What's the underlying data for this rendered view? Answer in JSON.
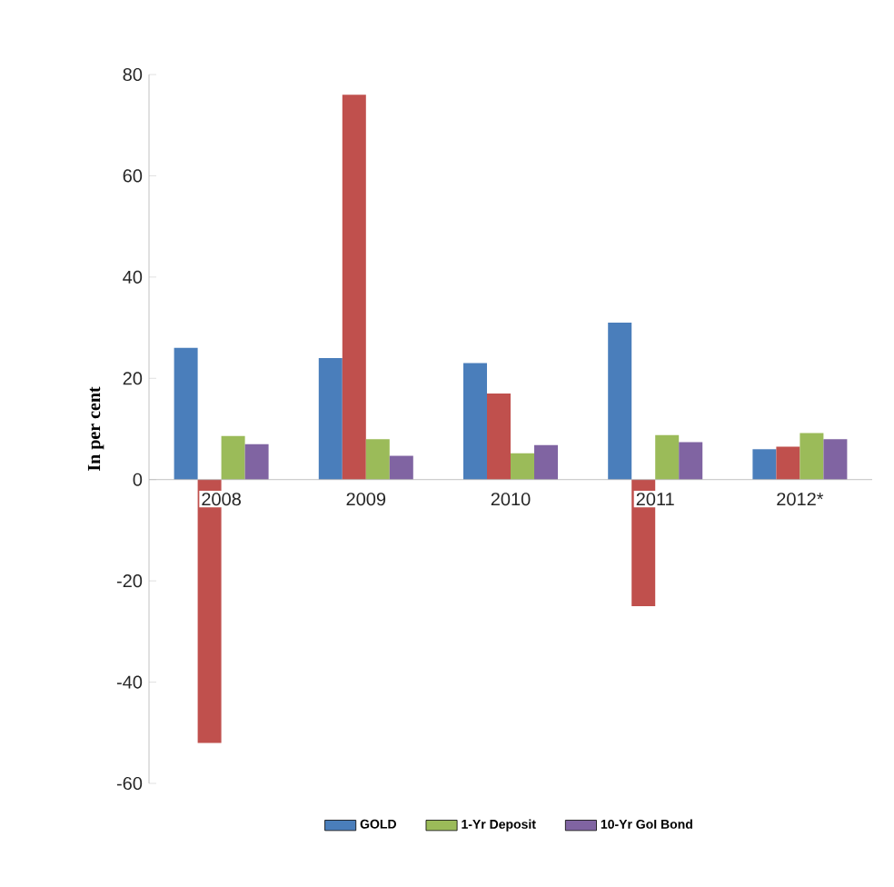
{
  "chart_data": {
    "type": "bar",
    "ylabel": "In  per cent",
    "categories": [
      "2008",
      "2009",
      "2010",
      "2011",
      "2012*"
    ],
    "series": [
      {
        "name": "GOLD",
        "color": "#4a7ebb",
        "values": [
          26,
          24,
          23,
          31,
          6
        ]
      },
      {
        "color": "#c0504d",
        "values": [
          -52,
          76,
          17,
          -25,
          6.5
        ]
      },
      {
        "name": "1-Yr Deposit",
        "color": "#9bbb59",
        "values": [
          8.6,
          8,
          5.2,
          8.8,
          9.2
        ]
      },
      {
        "name": "10-Yr GoI Bond",
        "color": "#8064a2",
        "values": [
          7,
          4.7,
          6.8,
          7.4,
          8
        ]
      }
    ],
    "ylim": [
      -60,
      80
    ],
    "yticks": [
      -60,
      -40,
      -20,
      0,
      20,
      40,
      60,
      80
    ],
    "grid": false,
    "legend": "bottom"
  }
}
